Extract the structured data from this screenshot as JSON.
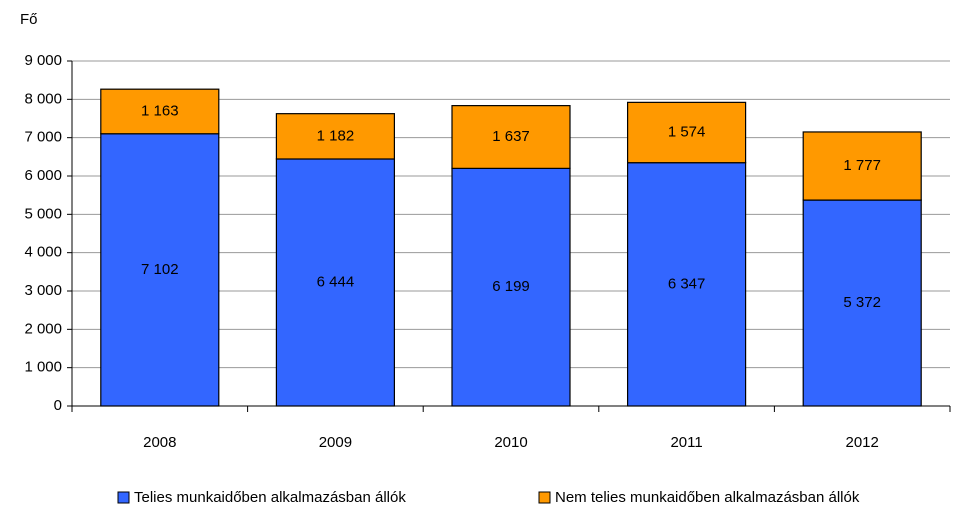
{
  "chart_data": {
    "type": "stacked_bar",
    "ylabel": "Fő",
    "categories": [
      "2008",
      "2009",
      "2010",
      "2011",
      "2012"
    ],
    "series": [
      {
        "name": "Telies munkaidőben alkalmazásban állók",
        "color": "#3366ff",
        "values": [
          7102,
          6444,
          6199,
          6347,
          5372
        ],
        "value_labels": [
          "7 102",
          "6 444",
          "6 199",
          "6 347",
          "5 372"
        ]
      },
      {
        "name": "Nem telies munkaidőben alkalmazásban állók",
        "color": "#ff9900",
        "values": [
          1163,
          1182,
          1637,
          1574,
          1777
        ],
        "value_labels": [
          "1 163",
          "1 182",
          "1 637",
          "1 574",
          "1 777"
        ]
      }
    ],
    "ylim": [
      0,
      9000
    ],
    "yticks": [
      0,
      {
        "value": 1000,
        "label": "1 000"
      },
      {
        "value": 2000,
        "label": "2 000"
      },
      {
        "value": 3000,
        "label": "3 000"
      },
      {
        "value": 4000,
        "label": "4 000"
      },
      {
        "value": 5000,
        "label": "5 000"
      },
      {
        "value": 6000,
        "label": "6 000"
      },
      {
        "value": 7000,
        "label": "7 000"
      },
      {
        "value": 8000,
        "label": "8 000"
      },
      {
        "value": 9000,
        "label": "9 000"
      }
    ],
    "grid": true
  }
}
